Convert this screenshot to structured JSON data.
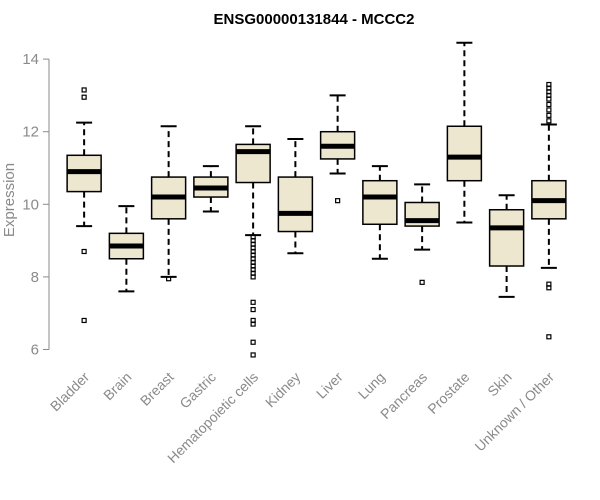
{
  "chart_data": {
    "type": "box",
    "title": "ENSG00000131844 - MCCC2",
    "xlabel": "",
    "ylabel": "Expression",
    "ylim": [
      5.6,
      14.6
    ],
    "yticks": [
      6,
      8,
      10,
      12,
      14
    ],
    "grid": false,
    "legend": "none",
    "colors": {
      "box_fill": "#ede7cf",
      "stroke": "#000000",
      "axis_text": "#8a8a8a"
    },
    "categories": [
      "Bladder",
      "Brain",
      "Breast",
      "Gastric",
      "Hematopoietic cells",
      "Kidney",
      "Liver",
      "Lung",
      "Pancreas",
      "Prostate",
      "Skin",
      "Unknown / Other"
    ],
    "boxes": [
      {
        "name": "Bladder",
        "min": 9.4,
        "q1": 10.35,
        "median": 10.9,
        "q3": 11.35,
        "max": 12.25,
        "outliers": [
          13.15,
          12.95,
          8.7,
          6.8
        ]
      },
      {
        "name": "Brain",
        "min": 7.6,
        "q1": 8.5,
        "median": 8.85,
        "q3": 9.2,
        "max": 9.95,
        "outliers": []
      },
      {
        "name": "Breast",
        "min": 8.0,
        "q1": 9.6,
        "median": 10.2,
        "q3": 10.75,
        "max": 12.15,
        "outliers": [
          7.95
        ]
      },
      {
        "name": "Gastric",
        "min": 9.8,
        "q1": 10.2,
        "median": 10.45,
        "q3": 10.75,
        "max": 11.05,
        "outliers": []
      },
      {
        "name": "Hematopoietic cells",
        "min": 9.15,
        "q1": 10.6,
        "median": 11.45,
        "q3": 11.65,
        "max": 12.15,
        "outliers": [
          9.1,
          9.0,
          8.9,
          8.8,
          8.7,
          8.6,
          8.5,
          8.4,
          8.3,
          8.2,
          8.1,
          8.0,
          7.3,
          7.1,
          6.8,
          6.7,
          6.2,
          5.85
        ]
      },
      {
        "name": "Kidney",
        "min": 8.65,
        "q1": 9.25,
        "median": 9.75,
        "q3": 10.75,
        "max": 11.8,
        "outliers": []
      },
      {
        "name": "Liver",
        "min": 10.85,
        "q1": 11.25,
        "median": 11.6,
        "q3": 12.0,
        "max": 13.0,
        "outliers": [
          10.1
        ]
      },
      {
        "name": "Lung",
        "min": 8.5,
        "q1": 9.45,
        "median": 10.2,
        "q3": 10.65,
        "max": 11.05,
        "outliers": []
      },
      {
        "name": "Pancreas",
        "min": 8.75,
        "q1": 9.4,
        "median": 9.55,
        "q3": 10.05,
        "max": 10.55,
        "outliers": [
          7.85
        ]
      },
      {
        "name": "Prostate",
        "min": 9.5,
        "q1": 10.65,
        "median": 11.3,
        "q3": 12.15,
        "max": 14.45,
        "outliers": []
      },
      {
        "name": "Skin",
        "min": 7.45,
        "q1": 8.3,
        "median": 9.35,
        "q3": 9.85,
        "max": 10.25,
        "outliers": []
      },
      {
        "name": "Unknown / Other",
        "min": 8.25,
        "q1": 9.6,
        "median": 10.1,
        "q3": 10.65,
        "max": 12.2,
        "outliers": [
          13.3,
          13.2,
          13.1,
          13.0,
          12.9,
          12.75,
          12.6,
          12.45,
          12.3,
          7.8,
          7.7,
          6.35
        ]
      }
    ]
  }
}
